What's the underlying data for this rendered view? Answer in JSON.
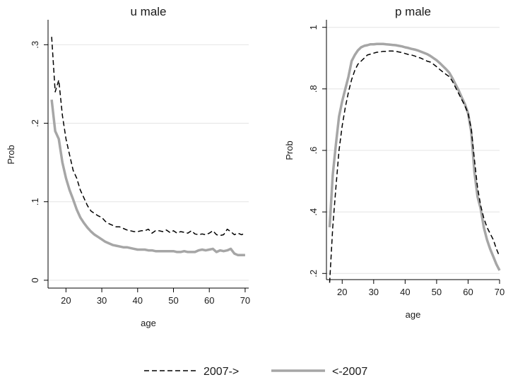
{
  "legend": {
    "position": "bottom-center",
    "items": [
      {
        "label": "2007->",
        "style": "dashed",
        "color": "#000000"
      },
      {
        "label": "<-2007",
        "style": "solid",
        "color": "#a6a6a6"
      }
    ]
  },
  "chart_data": [
    {
      "type": "line",
      "title": "u male",
      "xlabel": "age",
      "ylabel": "Prob",
      "xlim": [
        15,
        71
      ],
      "ylim": [
        -0.01,
        0.33
      ],
      "xticks": [
        20,
        30,
        40,
        50,
        60,
        70
      ],
      "yticks": [
        0,
        0.1,
        0.2,
        0.3
      ],
      "ytick_labels": [
        "0",
        ".1",
        ".2",
        ".3"
      ],
      "grid": "horizontal",
      "series": [
        {
          "name": "2007->",
          "style": "dashed",
          "color": "#000000",
          "x": [
            16,
            17,
            18,
            19,
            20,
            21,
            22,
            23,
            24,
            25,
            26,
            27,
            28,
            29,
            30,
            31,
            32,
            33,
            34,
            35,
            36,
            37,
            38,
            39,
            40,
            41,
            42,
            43,
            44,
            45,
            46,
            47,
            48,
            49,
            50,
            51,
            52,
            53,
            54,
            55,
            56,
            57,
            58,
            59,
            60,
            61,
            62,
            63,
            64,
            65,
            66,
            67,
            68,
            69,
            70
          ],
          "y": [
            0.31,
            0.24,
            0.255,
            0.21,
            0.18,
            0.16,
            0.14,
            0.13,
            0.115,
            0.105,
            0.095,
            0.088,
            0.085,
            0.082,
            0.08,
            0.075,
            0.072,
            0.07,
            0.068,
            0.068,
            0.066,
            0.064,
            0.063,
            0.062,
            0.062,
            0.063,
            0.063,
            0.065,
            0.06,
            0.063,
            0.063,
            0.062,
            0.064,
            0.061,
            0.063,
            0.06,
            0.062,
            0.061,
            0.06,
            0.063,
            0.059,
            0.058,
            0.059,
            0.058,
            0.06,
            0.063,
            0.058,
            0.057,
            0.058,
            0.065,
            0.062,
            0.058,
            0.06,
            0.058,
            0.06
          ]
        },
        {
          "name": "<-2007",
          "style": "solid",
          "color": "#a6a6a6",
          "x": [
            16,
            17,
            18,
            19,
            20,
            21,
            22,
            23,
            24,
            25,
            26,
            27,
            28,
            29,
            30,
            31,
            32,
            33,
            34,
            35,
            36,
            37,
            38,
            39,
            40,
            41,
            42,
            43,
            44,
            45,
            46,
            47,
            48,
            49,
            50,
            51,
            52,
            53,
            54,
            55,
            56,
            57,
            58,
            59,
            60,
            61,
            62,
            63,
            64,
            65,
            66,
            67,
            68,
            69,
            70
          ],
          "y": [
            0.23,
            0.19,
            0.18,
            0.15,
            0.13,
            0.115,
            0.103,
            0.09,
            0.08,
            0.073,
            0.067,
            0.062,
            0.058,
            0.055,
            0.052,
            0.049,
            0.047,
            0.045,
            0.044,
            0.043,
            0.042,
            0.042,
            0.041,
            0.04,
            0.039,
            0.039,
            0.039,
            0.038,
            0.038,
            0.037,
            0.037,
            0.037,
            0.037,
            0.037,
            0.037,
            0.036,
            0.036,
            0.037,
            0.036,
            0.036,
            0.036,
            0.038,
            0.039,
            0.038,
            0.039,
            0.04,
            0.036,
            0.038,
            0.037,
            0.038,
            0.04,
            0.034,
            0.032,
            0.032,
            0.032
          ]
        }
      ]
    },
    {
      "type": "line",
      "title": "p male",
      "xlabel": "age",
      "ylabel": "Prob",
      "xlim": [
        15,
        70
      ],
      "ylim": [
        0.18,
        1.02
      ],
      "xticks": [
        20,
        30,
        40,
        50,
        60,
        70
      ],
      "x_tick_labels": [
        "20",
        "30",
        "40",
        "50",
        "60",
        "70"
      ],
      "yticks": [
        0.2,
        0.4,
        0.6,
        0.8,
        1.0
      ],
      "ytick_labels": [
        ".2",
        ".4",
        ".6",
        ".8",
        "1"
      ],
      "grid": "horizontal",
      "series": [
        {
          "name": "2007->",
          "style": "dashed",
          "color": "#000000",
          "x": [
            16,
            17,
            18,
            19,
            20,
            21,
            22,
            23,
            24,
            25,
            26,
            27,
            28,
            29,
            30,
            31,
            32,
            33,
            34,
            35,
            36,
            37,
            38,
            39,
            40,
            41,
            42,
            43,
            44,
            45,
            46,
            47,
            48,
            49,
            50,
            51,
            52,
            53,
            54,
            55,
            56,
            57,
            58,
            59,
            60,
            61,
            62,
            63,
            64,
            65,
            66,
            67,
            68,
            69,
            70
          ],
          "y": [
            0.17,
            0.35,
            0.48,
            0.6,
            0.68,
            0.74,
            0.79,
            0.83,
            0.86,
            0.88,
            0.89,
            0.9,
            0.91,
            0.913,
            0.916,
            0.919,
            0.92,
            0.922,
            0.922,
            0.923,
            0.923,
            0.922,
            0.92,
            0.918,
            0.915,
            0.912,
            0.91,
            0.907,
            0.903,
            0.9,
            0.895,
            0.89,
            0.887,
            0.88,
            0.872,
            0.863,
            0.855,
            0.847,
            0.84,
            0.825,
            0.805,
            0.785,
            0.765,
            0.745,
            0.72,
            0.67,
            0.57,
            0.48,
            0.42,
            0.38,
            0.35,
            0.33,
            0.31,
            0.28,
            0.255
          ]
        },
        {
          "name": "<-2007",
          "style": "solid",
          "color": "#a6a6a6",
          "x": [
            16,
            17,
            18,
            19,
            20,
            21,
            22,
            23,
            24,
            25,
            26,
            27,
            28,
            29,
            30,
            31,
            32,
            33,
            34,
            35,
            36,
            37,
            38,
            39,
            40,
            41,
            42,
            43,
            44,
            45,
            46,
            47,
            48,
            49,
            50,
            51,
            52,
            53,
            54,
            55,
            56,
            57,
            58,
            59,
            60,
            61,
            62,
            63,
            64,
            65,
            66,
            67,
            68,
            69,
            70
          ],
          "y": [
            0.35,
            0.52,
            0.62,
            0.71,
            0.76,
            0.8,
            0.84,
            0.89,
            0.91,
            0.925,
            0.935,
            0.94,
            0.942,
            0.945,
            0.945,
            0.946,
            0.946,
            0.946,
            0.945,
            0.944,
            0.943,
            0.942,
            0.94,
            0.938,
            0.935,
            0.933,
            0.93,
            0.928,
            0.925,
            0.921,
            0.917,
            0.913,
            0.907,
            0.9,
            0.893,
            0.884,
            0.874,
            0.864,
            0.853,
            0.835,
            0.815,
            0.795,
            0.772,
            0.75,
            0.72,
            0.66,
            0.53,
            0.45,
            0.41,
            0.35,
            0.31,
            0.28,
            0.255,
            0.23,
            0.21
          ]
        }
      ]
    }
  ]
}
